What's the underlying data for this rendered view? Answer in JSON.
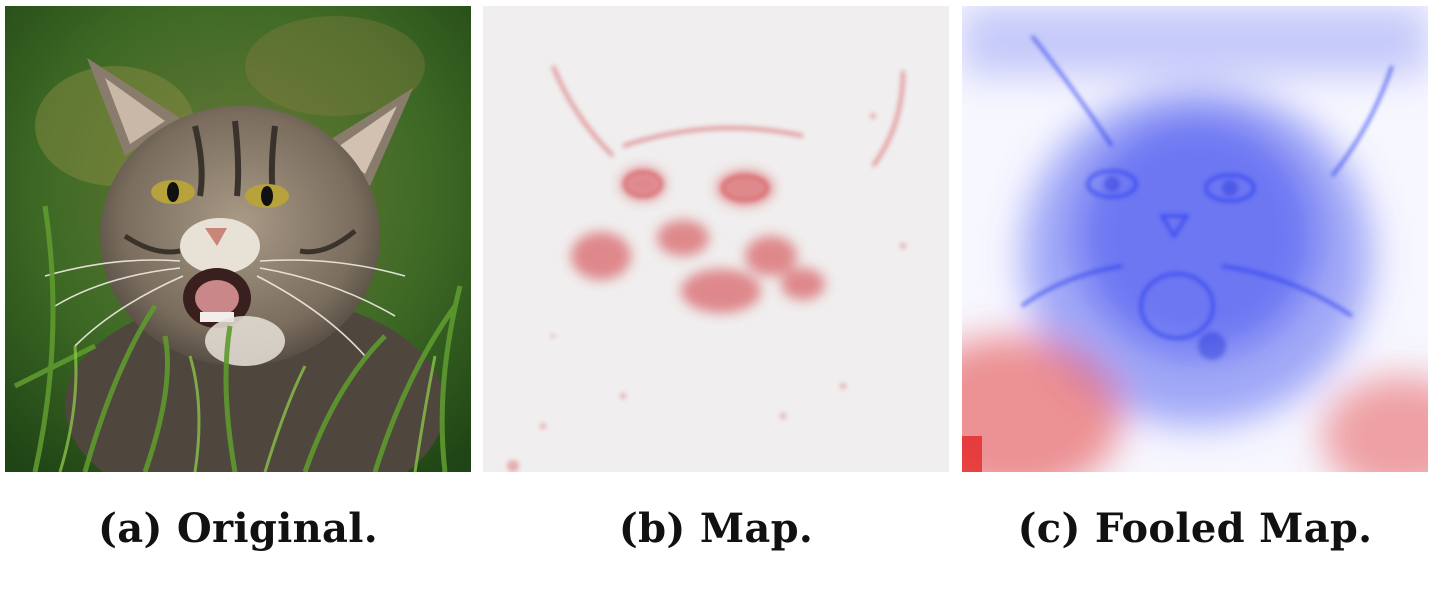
{
  "figure": {
    "panels": [
      {
        "caption": "(a) Original.",
        "color": "#3d6b2a"
      },
      {
        "caption": "(b) Map.",
        "color": "#d0343a"
      },
      {
        "caption": "(c) Fooled Map.",
        "color": "#2a3df0"
      }
    ]
  }
}
